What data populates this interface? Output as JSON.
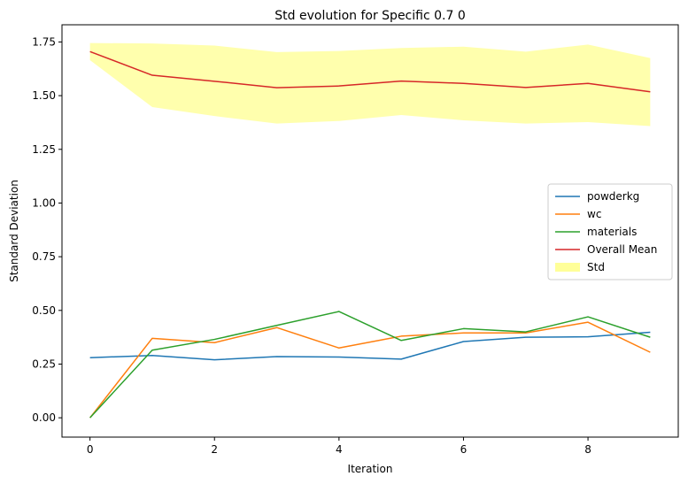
{
  "chart_data": {
    "type": "line",
    "title": "Std evolution for Specific 0.7 0",
    "xlabel": "Iteration",
    "ylabel": "Standard Deviation",
    "x": [
      0,
      1,
      2,
      3,
      4,
      5,
      6,
      7,
      8,
      9
    ],
    "xlim": [
      -0.45,
      9.45
    ],
    "ylim": [
      -0.09,
      1.83
    ],
    "x_ticks": [
      0,
      2,
      4,
      6,
      8
    ],
    "y_ticks": [
      0.0,
      0.25,
      0.5,
      0.75,
      1.0,
      1.25,
      1.5,
      1.75
    ],
    "y_tick_labels": [
      "0.00",
      "0.25",
      "0.50",
      "0.75",
      "1.00",
      "1.25",
      "1.50",
      "1.75"
    ],
    "grid": false,
    "legend_position": "center-right",
    "series": [
      {
        "name": "powderkg",
        "color": "#1f77b4",
        "values": [
          0.28,
          0.29,
          0.27,
          0.285,
          0.283,
          0.273,
          0.355,
          0.375,
          0.377,
          0.398
        ]
      },
      {
        "name": "wc",
        "color": "#ff7f0e",
        "values": [
          0.0,
          0.37,
          0.35,
          0.42,
          0.325,
          0.38,
          0.395,
          0.395,
          0.445,
          0.305
        ]
      },
      {
        "name": "materials",
        "color": "#2ca02c",
        "values": [
          0.0,
          0.315,
          0.365,
          0.43,
          0.495,
          0.36,
          0.415,
          0.4,
          0.47,
          0.375
        ]
      },
      {
        "name": "Overall Mean",
        "color": "#d62728",
        "values": [
          1.705,
          1.595,
          1.567,
          1.537,
          1.545,
          1.568,
          1.557,
          1.538,
          1.557,
          1.518
        ]
      }
    ],
    "band": {
      "name": "Std",
      "color": "#ffff99",
      "upper": [
        1.745,
        1.743,
        1.733,
        1.703,
        1.708,
        1.722,
        1.728,
        1.705,
        1.738,
        1.675
      ],
      "lower": [
        1.665,
        1.447,
        1.405,
        1.37,
        1.382,
        1.41,
        1.385,
        1.37,
        1.377,
        1.358
      ]
    }
  }
}
